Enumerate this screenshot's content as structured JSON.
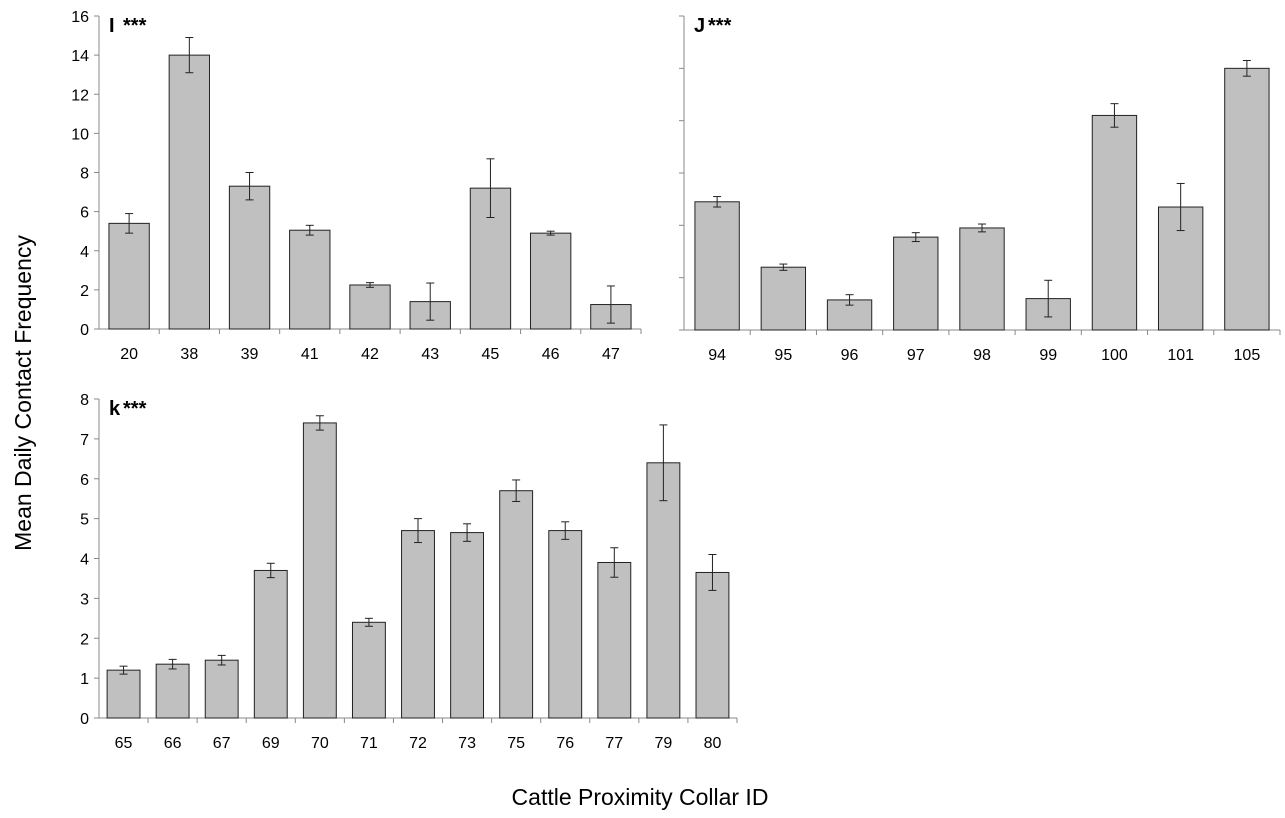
{
  "figure": {
    "ylabel": "Mean Daily Contact Frequency",
    "xlabel": "Cattle Proximity Collar ID"
  },
  "chart_data": [
    {
      "type": "bar",
      "panel_label": "I",
      "significance": "***",
      "categories": [
        "20",
        "38",
        "39",
        "41",
        "42",
        "43",
        "45",
        "46",
        "47"
      ],
      "values": [
        5.4,
        14.0,
        7.3,
        5.05,
        2.25,
        1.4,
        7.2,
        4.9,
        1.25
      ],
      "errors": [
        0.5,
        0.9,
        0.7,
        0.25,
        0.12,
        0.95,
        1.5,
        0.1,
        0.95
      ],
      "ylim": [
        0,
        16
      ],
      "yticks": [
        0,
        2,
        4,
        6,
        8,
        10,
        12,
        14,
        16
      ],
      "bar_color": "#c0c0c0"
    },
    {
      "type": "bar",
      "panel_label": "J",
      "significance": "***",
      "categories": [
        "94",
        "95",
        "96",
        "97",
        "98",
        "99",
        "100",
        "101",
        "105"
      ],
      "values": [
        4.9,
        2.4,
        1.15,
        3.55,
        3.9,
        1.2,
        8.2,
        4.7,
        10.0
      ],
      "errors": [
        0.2,
        0.12,
        0.2,
        0.17,
        0.15,
        0.7,
        0.45,
        0.9,
        0.3
      ],
      "ylim": [
        0,
        12
      ],
      "yticks": [
        0,
        2,
        4,
        6,
        8,
        10,
        12
      ],
      "ytick_labels_visible": false,
      "bar_color": "#c0c0c0"
    },
    {
      "type": "bar",
      "panel_label": "k",
      "significance": "***",
      "categories": [
        "65",
        "66",
        "67",
        "69",
        "70",
        "71",
        "72",
        "73",
        "75",
        "76",
        "77",
        "79",
        "80"
      ],
      "values": [
        1.2,
        1.35,
        1.45,
        3.7,
        7.4,
        2.4,
        4.7,
        4.65,
        5.7,
        4.7,
        3.9,
        6.4,
        3.65
      ],
      "errors": [
        0.1,
        0.12,
        0.12,
        0.18,
        0.18,
        0.1,
        0.3,
        0.22,
        0.27,
        0.22,
        0.37,
        0.95,
        0.45
      ],
      "ylim": [
        0,
        8
      ],
      "yticks": [
        0,
        1,
        2,
        3,
        4,
        5,
        6,
        7,
        8
      ],
      "bar_color": "#c0c0c0"
    }
  ]
}
